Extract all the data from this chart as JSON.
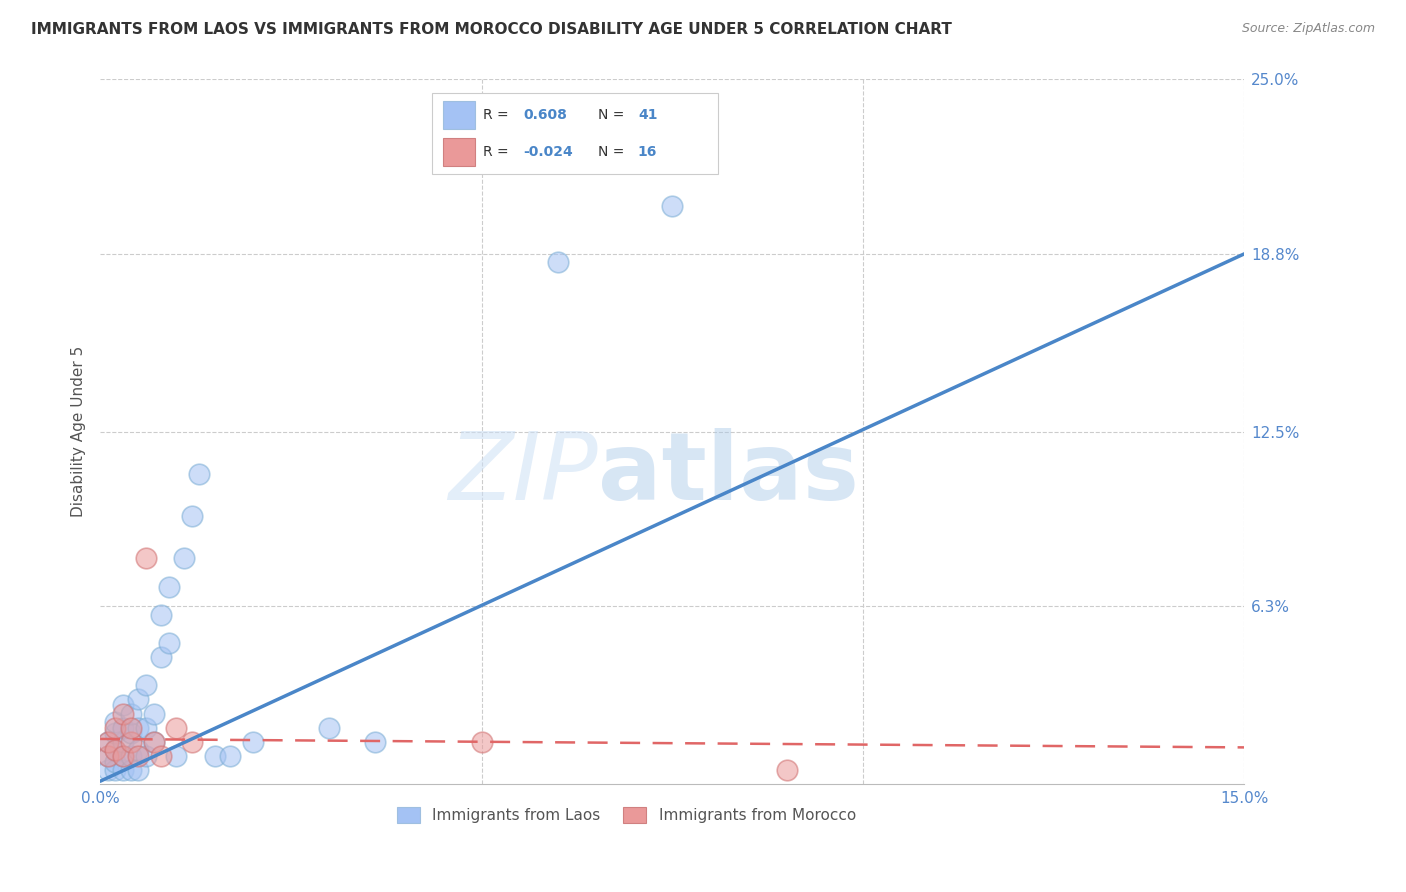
{
  "title": "IMMIGRANTS FROM LAOS VS IMMIGRANTS FROM MOROCCO DISABILITY AGE UNDER 5 CORRELATION CHART",
  "source": "Source: ZipAtlas.com",
  "ylabel": "Disability Age Under 5",
  "xlabel_laos": "Immigrants from Laos",
  "xlabel_morocco": "Immigrants from Morocco",
  "x_min": 0.0,
  "x_max": 0.15,
  "y_min": 0.0,
  "y_max": 0.25,
  "R_laos": 0.608,
  "N_laos": 41,
  "R_morocco": -0.024,
  "N_morocco": 16,
  "color_laos": "#a4c2f4",
  "color_morocco": "#ea9999",
  "line_color_laos": "#4a86c8",
  "line_color_morocco": "#e06666",
  "laos_line_x0": 0.0,
  "laos_line_y0": 0.001,
  "laos_line_x1": 0.15,
  "laos_line_y1": 0.188,
  "morocco_line_x0": 0.0,
  "morocco_line_y0": 0.016,
  "morocco_line_x1": 0.15,
  "morocco_line_y1": 0.013,
  "laos_x": [
    0.001,
    0.001,
    0.001,
    0.002,
    0.002,
    0.002,
    0.002,
    0.002,
    0.003,
    0.003,
    0.003,
    0.003,
    0.003,
    0.004,
    0.004,
    0.004,
    0.004,
    0.005,
    0.005,
    0.005,
    0.005,
    0.006,
    0.006,
    0.006,
    0.007,
    0.007,
    0.008,
    0.008,
    0.009,
    0.009,
    0.01,
    0.011,
    0.012,
    0.013,
    0.015,
    0.017,
    0.02,
    0.03,
    0.036,
    0.06,
    0.075
  ],
  "laos_y": [
    0.005,
    0.01,
    0.015,
    0.005,
    0.008,
    0.012,
    0.018,
    0.022,
    0.005,
    0.01,
    0.015,
    0.02,
    0.028,
    0.005,
    0.01,
    0.018,
    0.025,
    0.005,
    0.012,
    0.02,
    0.03,
    0.01,
    0.02,
    0.035,
    0.015,
    0.025,
    0.045,
    0.06,
    0.05,
    0.07,
    0.01,
    0.08,
    0.095,
    0.11,
    0.01,
    0.01,
    0.015,
    0.02,
    0.015,
    0.185,
    0.205
  ],
  "morocco_x": [
    0.001,
    0.001,
    0.002,
    0.002,
    0.003,
    0.003,
    0.004,
    0.004,
    0.005,
    0.006,
    0.007,
    0.008,
    0.01,
    0.012,
    0.05,
    0.09
  ],
  "morocco_y": [
    0.01,
    0.015,
    0.012,
    0.02,
    0.01,
    0.025,
    0.015,
    0.02,
    0.01,
    0.08,
    0.015,
    0.01,
    0.02,
    0.015,
    0.015,
    0.005
  ]
}
